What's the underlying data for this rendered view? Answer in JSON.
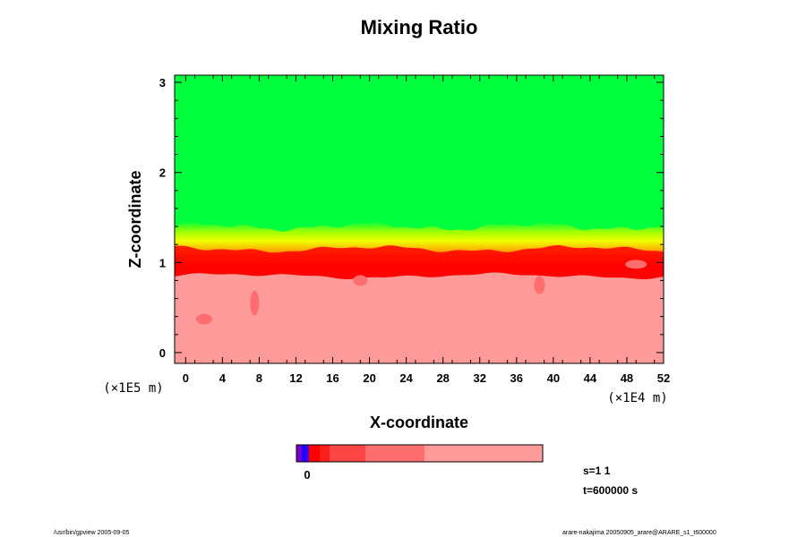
{
  "chart_data": {
    "type": "heatmap",
    "title": "Mixing Ratio",
    "xlabel": "X-coordinate",
    "ylabel": "Z-coordinate",
    "x_scale_note": "(×1E4 m)",
    "y_scale_note": "(×1E5 m)",
    "xlim": [
      -1.2,
      52
    ],
    "ylim": [
      -0.12,
      3.08
    ],
    "xticks": [
      0,
      4,
      8,
      12,
      16,
      20,
      24,
      28,
      32,
      36,
      40,
      44,
      48,
      52
    ],
    "yticks": [
      0,
      1,
      2,
      3
    ],
    "regions": [
      {
        "name": "upper",
        "z_range": [
          1.4,
          3.08
        ],
        "color": "#00ff3c"
      },
      {
        "name": "transition-yellow",
        "z_range": [
          1.25,
          1.4
        ],
        "color": "#e6ff00"
      },
      {
        "name": "transition-orange",
        "z_range": [
          1.15,
          1.25
        ],
        "color": "#ff9a00"
      },
      {
        "name": "peak",
        "z_range": [
          1.0,
          1.15
        ],
        "color": "#ff0000"
      },
      {
        "name": "lower",
        "z_range": [
          -0.12,
          0.85
        ],
        "color": "#ff9a9a"
      }
    ],
    "colorbar": {
      "segments": [
        {
          "fraction": 0.02,
          "color": "#7a00c8"
        },
        {
          "fraction": 0.03,
          "color": "#2800ff"
        },
        {
          "fraction": 0.045,
          "color": "#ff0000"
        },
        {
          "fraction": 0.04,
          "color": "#ff1e1e"
        },
        {
          "fraction": 0.145,
          "color": "#ff4646"
        },
        {
          "fraction": 0.24,
          "color": "#ff6e6e"
        },
        {
          "fraction": 0.48,
          "color": "#ff9a9a"
        }
      ],
      "label": "0"
    }
  },
  "info": {
    "step": "s=1 1",
    "time": "t=600000 s"
  },
  "footer": {
    "left": "/usr/bin/gpview 2005-09-05",
    "right": "arare-nakajima 20050905_arare@ARARE_s1_t600000"
  }
}
